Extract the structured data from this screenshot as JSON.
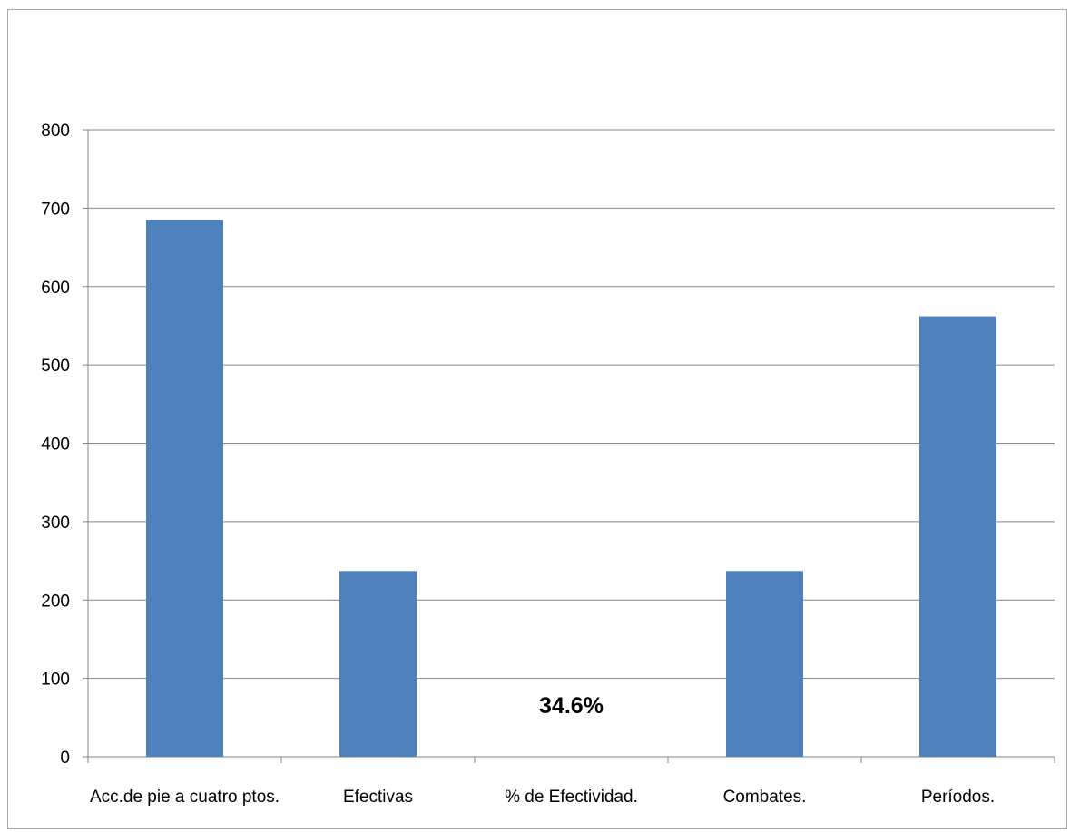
{
  "chart_data": {
    "type": "bar",
    "title": "",
    "xlabel": "",
    "ylabel": "",
    "categories": [
      "Acc.de pie a cuatro ptos.",
      "Efectivas",
      "% de Efectividad.",
      "Combates.",
      "Períodos."
    ],
    "values": [
      685,
      237,
      0.346,
      237,
      562
    ],
    "data_labels": [
      "",
      "",
      "34.6%",
      "",
      ""
    ],
    "ylim": [
      0,
      800
    ],
    "yticks": [
      "0",
      "100",
      "200",
      "300",
      "400",
      "500",
      "600",
      "700",
      "800"
    ],
    "grid": true,
    "legend": "none",
    "bar_color": "#4f81bd",
    "grid_color": "#868686"
  }
}
